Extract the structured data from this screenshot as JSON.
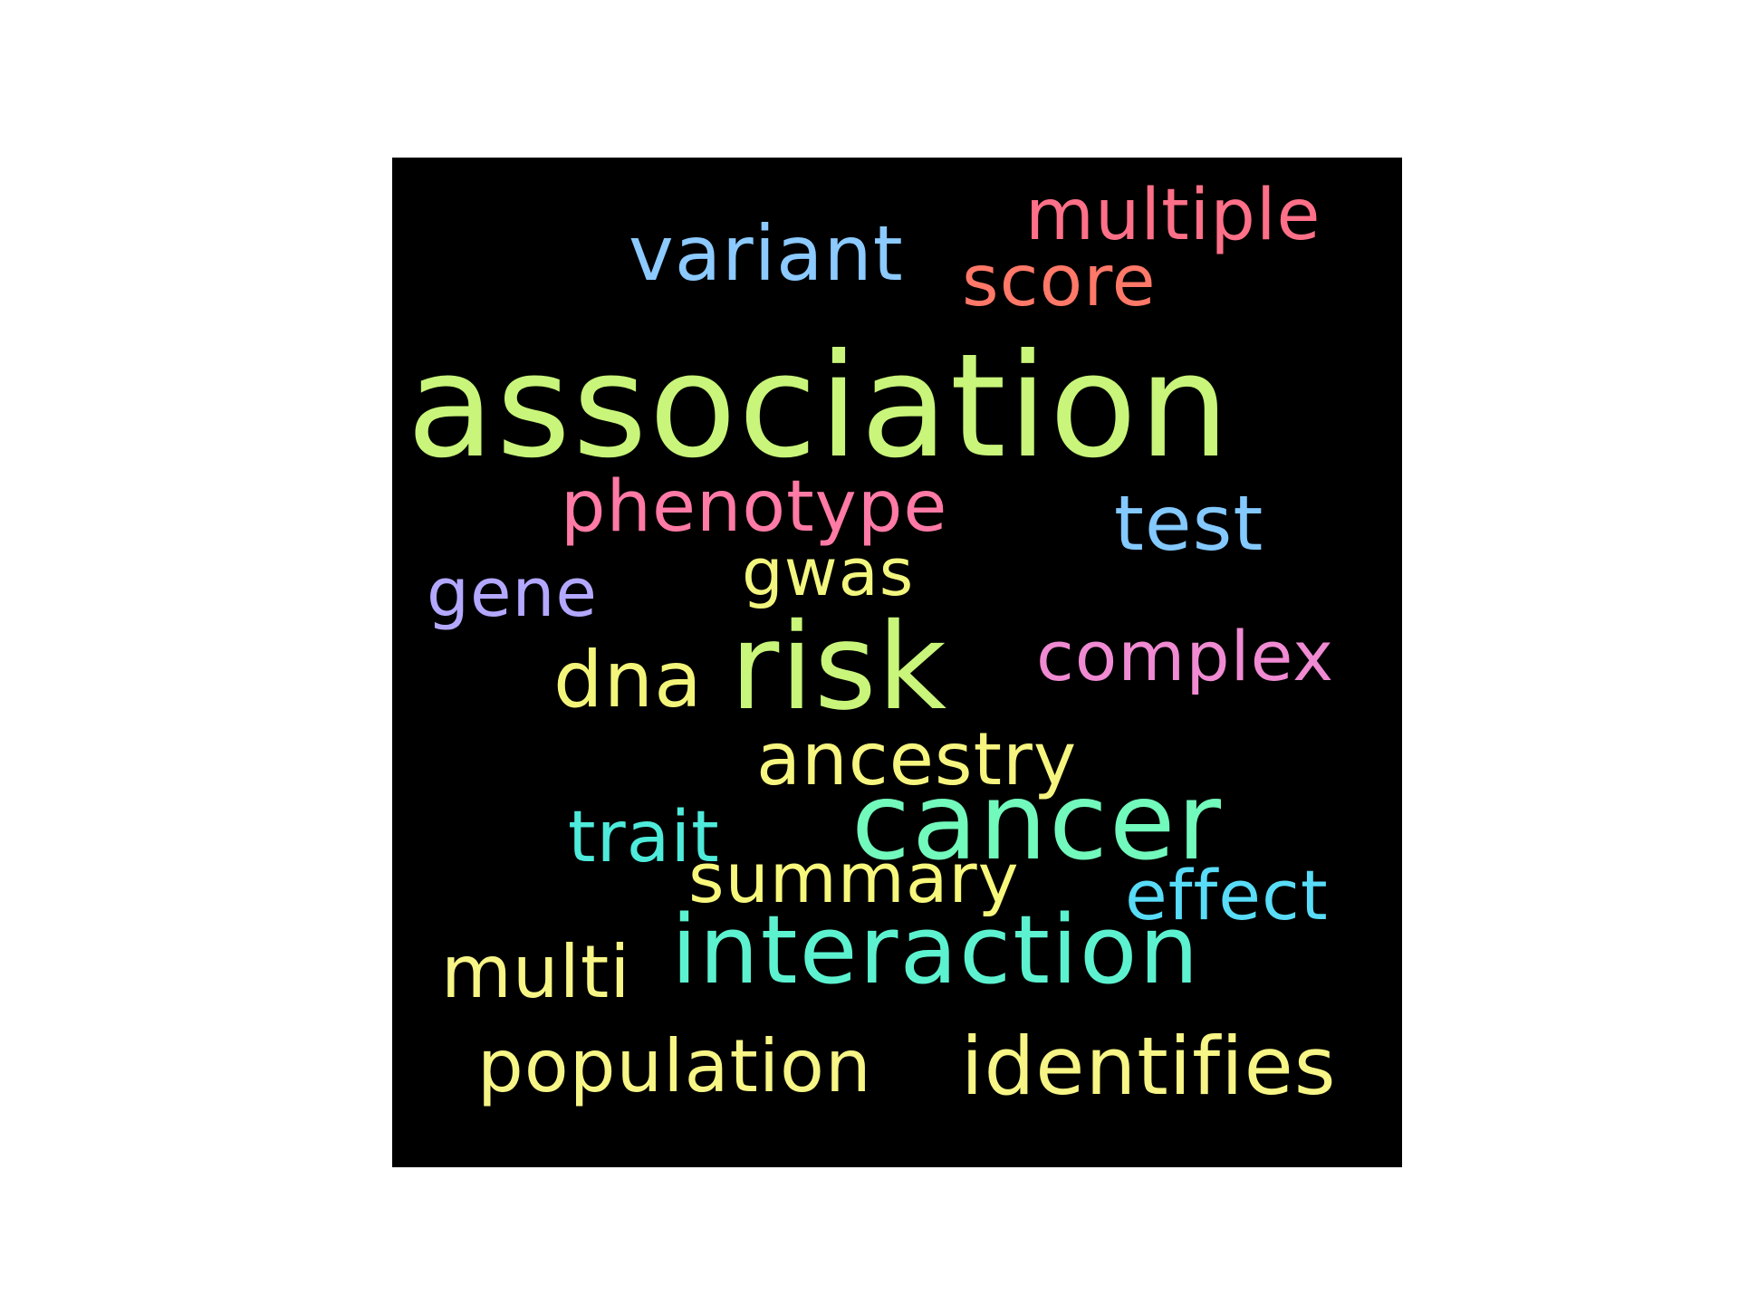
{
  "words": {
    "association": {
      "text": "association",
      "color": "#c8f57a"
    },
    "multiple": {
      "text": "multiple",
      "color": "#ff7088"
    },
    "variant": {
      "text": "variant",
      "color": "#8ccaff"
    },
    "score": {
      "text": "score",
      "color": "#ff7868"
    },
    "phenotype": {
      "text": "phenotype",
      "color": "#ff7aa4"
    },
    "test": {
      "text": "test",
      "color": "#84c9ff"
    },
    "gwas": {
      "text": "gwas",
      "color": "#f3f67e"
    },
    "gene": {
      "text": "gene",
      "color": "#b3a8ff"
    },
    "dna": {
      "text": "dna",
      "color": "#f3f57a"
    },
    "risk": {
      "text": "risk",
      "color": "#c8f57a"
    },
    "complex": {
      "text": "complex",
      "color": "#f08ad2"
    },
    "ancestry": {
      "text": "ancestry",
      "color": "#f6f57f"
    },
    "trait": {
      "text": "trait",
      "color": "#4eebdb"
    },
    "cancer": {
      "text": "cancer",
      "color": "#72f9bc"
    },
    "summary": {
      "text": "summary",
      "color": "#f7f77c"
    },
    "effect": {
      "text": "effect",
      "color": "#58dcf7"
    },
    "multi": {
      "text": "multi",
      "color": "#f7f585"
    },
    "interaction": {
      "text": "interaction",
      "color": "#5cf2d0"
    },
    "population": {
      "text": "population",
      "color": "#f7f585"
    },
    "identifies": {
      "text": "identifies",
      "color": "#f7f585"
    }
  }
}
